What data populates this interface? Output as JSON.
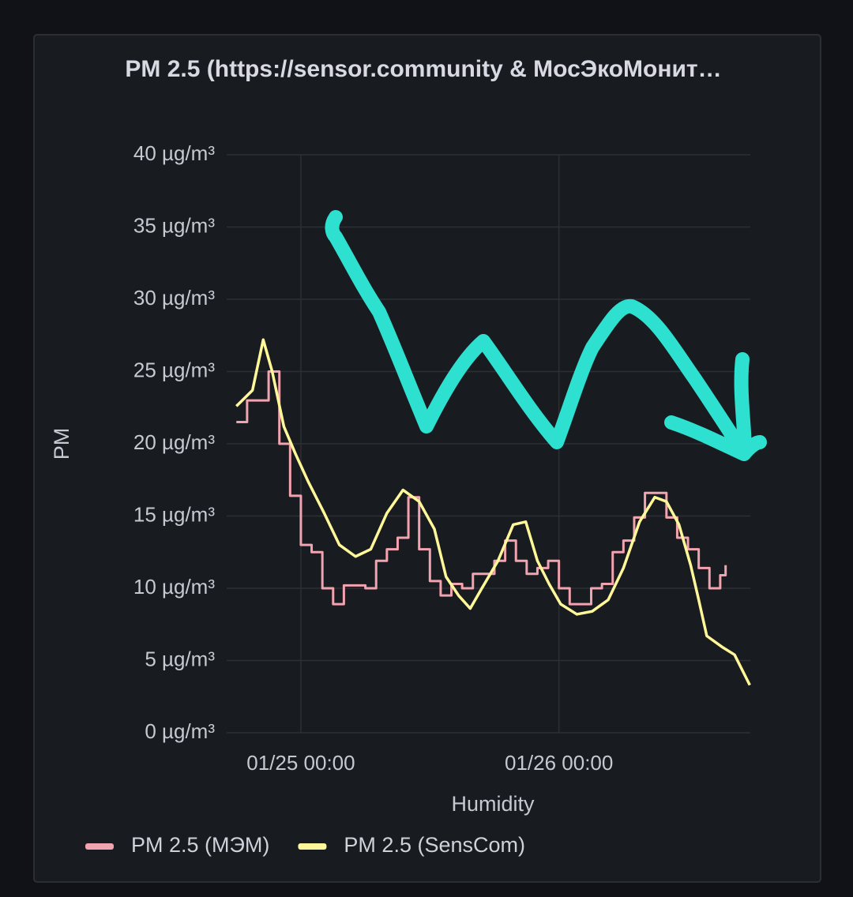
{
  "chart_data": {
    "type": "line",
    "title": "PM 2.5 (https://sensor.community & МосЭкоМонит…",
    "y_label": "PM",
    "x_label": "Humidity",
    "xlim": [
      "01/24 17:06",
      "01/26 17:48"
    ],
    "xticks": [
      "01/25 00:00",
      "01/26 00:00"
    ],
    "ylim": [
      0,
      40
    ],
    "yticks": [
      {
        "value": 0,
        "label": "0 µg/m³"
      },
      {
        "value": 5,
        "label": "5 µg/m³"
      },
      {
        "value": 10,
        "label": "10 µg/m³"
      },
      {
        "value": 15,
        "label": "15 µg/m³"
      },
      {
        "value": 20,
        "label": "20 µg/m³"
      },
      {
        "value": 25,
        "label": "25 µg/m³"
      },
      {
        "value": 30,
        "label": "30 µg/m³"
      },
      {
        "value": 35,
        "label": "35 µg/m³"
      },
      {
        "value": 40,
        "label": "40 µg/m³"
      }
    ],
    "grid": true,
    "legend": "bottom-left",
    "series": [
      {
        "name": "PM 2.5 (МЭМ)",
        "color": "#f2a3b0",
        "step": true,
        "x": [
          "01/24 18:00",
          "01/24 19:00",
          "01/24 20:00",
          "01/24 21:00",
          "01/24 22:00",
          "01/24 23:00",
          "01/25 00:00",
          "01/25 01:00",
          "01/25 02:00",
          "01/25 03:00",
          "01/25 04:00",
          "01/25 05:00",
          "01/25 06:00",
          "01/25 07:00",
          "01/25 08:00",
          "01/25 09:00",
          "01/25 10:00",
          "01/25 11:00",
          "01/25 12:00",
          "01/25 13:00",
          "01/25 14:00",
          "01/25 15:00",
          "01/25 16:00",
          "01/25 17:00",
          "01/25 18:00",
          "01/25 19:00",
          "01/25 20:00",
          "01/25 21:00",
          "01/25 22:00",
          "01/25 23:00",
          "01/26 00:00",
          "01/26 01:00",
          "01/26 02:00",
          "01/26 03:00",
          "01/26 04:00",
          "01/26 05:00",
          "01/26 06:00",
          "01/26 07:00",
          "01/26 08:00",
          "01/26 09:00",
          "01/26 10:00",
          "01/26 11:00",
          "01/26 12:00",
          "01/26 13:00",
          "01/26 14:00",
          "01/26 15:00",
          "01/26 15:30"
        ],
        "values": [
          21.5,
          23,
          23,
          25,
          20,
          16.4,
          13,
          12.5,
          10,
          8.9,
          10.2,
          10.2,
          10,
          11.9,
          12.7,
          13.5,
          16.3,
          12.7,
          10.5,
          9.5,
          10.3,
          10,
          11,
          11,
          11.9,
          13.3,
          11.9,
          11,
          11.4,
          11.9,
          10,
          8.9,
          8.9,
          10,
          10.3,
          12.5,
          13.3,
          14.9,
          16.6,
          16.6,
          14.9,
          13.5,
          12.7,
          11.4,
          10,
          10.9,
          11.6
        ]
      },
      {
        "name": "PM 2.5 (SensCom)",
        "color": "#fff899",
        "step": false,
        "x": [
          "01/24 18:00",
          "01/24 19:30",
          "01/24 20:30",
          "01/24 21:20",
          "01/24 22:25",
          "01/24 23:30",
          "01/25 00:40",
          "01/25 02:10",
          "01/25 03:35",
          "01/25 05:05",
          "01/25 06:30",
          "01/25 08:00",
          "01/25 09:30",
          "01/25 11:00",
          "01/25 12:25",
          "01/25 13:30",
          "01/25 14:40",
          "01/25 15:45",
          "01/25 16:50",
          "01/25 18:20",
          "01/25 19:45",
          "01/25 20:55",
          "01/25 22:00",
          "01/25 23:05",
          "01/26 00:10",
          "01/26 01:40",
          "01/26 03:05",
          "01/26 04:35",
          "01/26 06:00",
          "01/26 07:30",
          "01/26 08:55",
          "01/26 10:00",
          "01/26 11:10",
          "01/26 12:15",
          "01/26 13:00",
          "01/26 13:45",
          "01/26 15:15",
          "01/26 16:20",
          "01/26 17:45"
        ],
        "values": [
          22.6,
          23.7,
          27.2,
          25,
          21.2,
          19.3,
          17.4,
          15.2,
          13,
          12.2,
          12.7,
          15.2,
          16.8,
          16,
          14.1,
          10.8,
          9.5,
          8.6,
          10,
          11.9,
          14.4,
          14.6,
          11.9,
          10.3,
          8.9,
          8.2,
          8.4,
          9.2,
          11.4,
          14.6,
          16.3,
          16,
          14.4,
          11.6,
          9.2,
          6.7,
          5.9,
          5.4,
          3.3
        ]
      }
    ]
  }
}
